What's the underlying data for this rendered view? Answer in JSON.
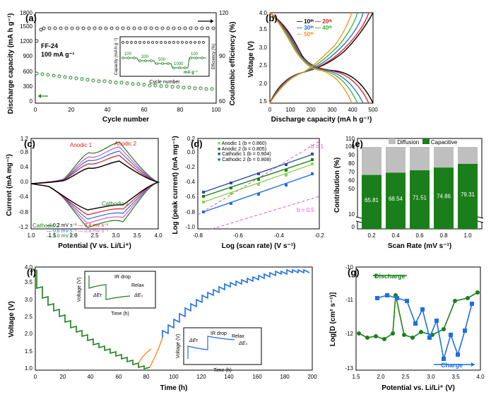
{
  "colors": {
    "green": "#1a7f1a",
    "dark_green": "#0f6b0f",
    "black": "#000000",
    "red": "#e31b1b",
    "blue": "#1e6fe0",
    "kelly": "#2fb82f",
    "orange": "#ff8c1a",
    "gray": "#bfbfbf",
    "pink": "#e84ccf",
    "cyan": "#1ea3d8",
    "lt_green1": "#6cc24a",
    "lt_green2": "#8fd14f",
    "navy": "#2a4fa0"
  },
  "panel_a": {
    "label": "(a)",
    "ylabel_left": "Discharge capacity (mA h g⁻¹)",
    "ylabel_right": "Coulombic efficiency (%)",
    "xlabel": "Cycle number",
    "note_sample": "FF-24",
    "note_rate": "100 mA g⁻¹",
    "xlim": [
      0,
      100
    ],
    "xtick_step": 20,
    "ylim_left": [
      0,
      1800
    ],
    "ytick_left_step": 300,
    "ylim_right": [
      60,
      120
    ],
    "ytick_right_step": 30,
    "capacity": {
      "start": 580,
      "end": 280
    },
    "efficiency": 99,
    "inset": {
      "ylabel_left": "Capacity (mA h g⁻¹)",
      "ylabel_right": "Efficiency (%)",
      "xlabel": "Cycle number",
      "rate": "mA g⁻¹",
      "rates": [
        "100",
        "200",
        "500",
        "1000",
        "100"
      ],
      "xlim": [
        0,
        60
      ],
      "ylim_left": [
        0,
        300
      ],
      "ylim_right": [
        60,
        120
      ]
    }
  },
  "panel_b": {
    "label": "(b)",
    "xlabel": "Discharge capacity (mA h g⁻¹)",
    "ylabel": "Voltage (V)",
    "xlim": [
      0,
      500
    ],
    "xtick_step": 100,
    "ylim": [
      1.5,
      4.0
    ],
    "ytick_step": 0.5,
    "legend": [
      {
        "label": "10ᵗʰ",
        "color": "#000000"
      },
      {
        "label": "20ᵗʰ",
        "color": "#e31b1b"
      },
      {
        "label": "30ᵗʰ",
        "color": "#1e6fe0"
      },
      {
        "label": "40ᵗʰ",
        "color": "#2fb82f"
      },
      {
        "label": "50ᵗʰ",
        "color": "#ff8c1a"
      }
    ]
  },
  "panel_c": {
    "label": "(c)",
    "xlabel": "Potential (V vs. Li/Li⁺)",
    "ylabel": "Current (mA mg⁻¹)",
    "xlim": [
      1.0,
      4.0
    ],
    "xtick_step": 0.5,
    "ylim": [
      -1.2,
      1.2
    ],
    "ytick_step": 0.4,
    "annot": {
      "a1": "Anodic 1",
      "a2": "Anodic 2",
      "c1": "Cathodic 1",
      "c2": "Cathodic 2"
    },
    "legend": [
      {
        "label": "0.2 mV s⁻¹",
        "color": "#000000"
      },
      {
        "label": "0.4 mV s⁻¹",
        "color": "#e31b1b"
      },
      {
        "label": "0.6 mV s⁻¹",
        "color": "#1e6fe0"
      },
      {
        "label": "0.8 mV s⁻¹",
        "color": "#e84ccf"
      },
      {
        "label": "1.0 mV s⁻¹",
        "color": "#1a7f1a"
      }
    ]
  },
  "panel_d": {
    "label": "(d)",
    "xlabel": "Log (scan rate) (V s⁻¹)",
    "ylabel": "Log (peak current) (mA mg⁻¹)",
    "xlim": [
      -0.8,
      -0.2
    ],
    "xtick_step": 0.2,
    "ylim": [
      -1.0,
      0.2
    ],
    "ytick_step": 0.2,
    "ref_labels": {
      "b1": "b = 1",
      "b05": "b = 0.5"
    },
    "legend": [
      {
        "label": "Anodic 1 (b = 0.860)",
        "color": "#8fd14f"
      },
      {
        "label": "Anodic 2 (b = 0.805)",
        "color": "#1a7f1a"
      },
      {
        "label": "Cathodic 1 (b = 0.904)",
        "color": "#2a4fa0"
      },
      {
        "label": "Cathodic 2 (b = 0.808)",
        "color": "#1e6fe0"
      }
    ]
  },
  "panel_e": {
    "label": "(e)",
    "xlabel": "Scan Rate (mV s⁻¹)",
    "ylabel": "Contribution (%)",
    "ylim": [
      0,
      110
    ],
    "ytick_step": 10,
    "categories": [
      "0.2",
      "0.4",
      "0.6",
      "0.8",
      "1.0"
    ],
    "capacitive": [
      65.81,
      68.54,
      71.51,
      74.86,
      79.31
    ],
    "legend": {
      "diffusion": "Diffusion",
      "capacitive": "Capacitive"
    }
  },
  "panel_f": {
    "label": "(f)",
    "xlabel": "Time (h)",
    "ylabel": "Voltage (V)",
    "xlim": [
      0,
      200
    ],
    "xtick_step": 20,
    "ylim": [
      1.0,
      4.0
    ],
    "ytick_step": 0.5,
    "inset_labels": {
      "ir": "IR drop",
      "relax": "Relax",
      "dEs": "ΔEₛ",
      "dEt": "ΔEτ"
    }
  },
  "panel_g": {
    "label": "(g)",
    "xlabel": "Potential vs. Li/Li⁺ (V)",
    "ylabel": "Log[D (cm² s⁻¹)]",
    "xlim": [
      1.5,
      4.0
    ],
    "xtick_step": 0.5,
    "ylim": [
      -13,
      -10
    ],
    "ytick_step": 1,
    "legend": {
      "discharge": "Discharge",
      "charge": "Charge"
    }
  }
}
